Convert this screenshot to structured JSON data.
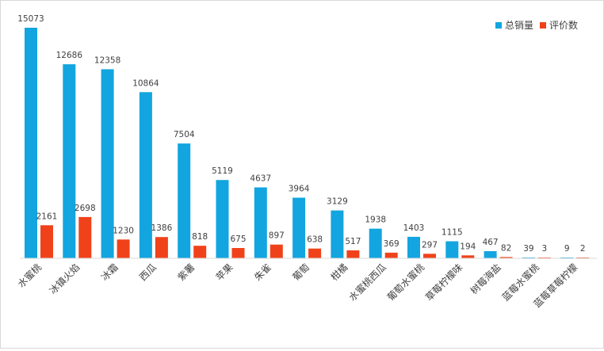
{
  "chart_data": {
    "type": "bar",
    "title": "",
    "xlabel": "",
    "ylabel": "",
    "ylim": [
      0,
      16000
    ],
    "grid": false,
    "legend_position": "top-right",
    "categories": [
      "水蜜桃",
      "冰镇火焰",
      "冰霜",
      "西瓜",
      "紫薯",
      "苹果",
      "朱雀",
      "葡萄",
      "柑橘",
      "水蜜桃西瓜",
      "葡萄水蜜桃",
      "草莓柠檬味",
      "树莓海盐",
      "蓝莓水蜜桃",
      "蓝莓草莓柠檬"
    ],
    "series": [
      {
        "name": "总销量",
        "color": "#12a5e0",
        "values": [
          15073,
          12686,
          12358,
          10864,
          7504,
          5119,
          4637,
          3964,
          3129,
          1938,
          1403,
          1115,
          467,
          39,
          9
        ]
      },
      {
        "name": "评价数",
        "color": "#f0421a",
        "values": [
          2161,
          2698,
          1230,
          1386,
          818,
          675,
          897,
          638,
          517,
          369,
          297,
          194,
          82,
          3,
          2
        ]
      }
    ]
  }
}
